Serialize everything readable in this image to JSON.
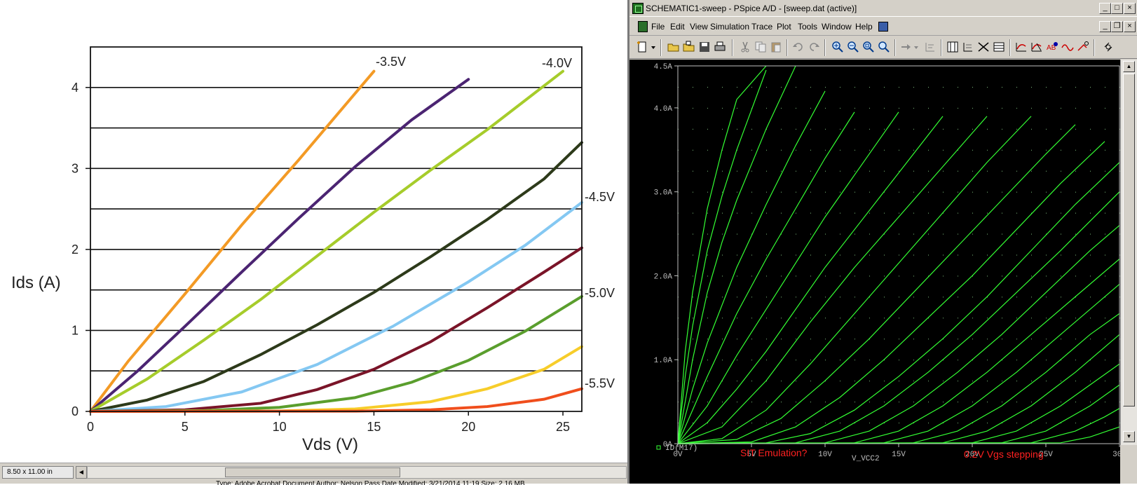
{
  "left_chart": {
    "y_axis_label": "Ids (A)",
    "x_axis_label": "Vds (V)",
    "x_ticks": [
      "0",
      "5",
      "10",
      "15",
      "20",
      "25"
    ],
    "y_ticks": [
      "0",
      "1",
      "2",
      "3",
      "4"
    ],
    "curve_labels": [
      "-3.5V",
      "-4.0V",
      "-4.5V",
      "-5.0V",
      "-5.5V"
    ]
  },
  "left_status": {
    "page_size": "8.50 x 11.00 in",
    "file_info": "Type: Adobe Acrobat Document Author: Nelson Pass Date Modified: 3/21/2014 11:19 Size: 2.16 MB"
  },
  "pspice": {
    "title": "SCHEMATIC1-sweep - PSpice A/D  - [sweep.dat (active)]",
    "menu": [
      "File",
      "Edit",
      "View",
      "Simulation",
      "Trace",
      "Plot",
      "Tools",
      "Window",
      "Help"
    ],
    "x_ticks": [
      "0V",
      "5V",
      "10V",
      "15V",
      "20V",
      "25V",
      "30V"
    ],
    "y_ticks": [
      "0A",
      "1.0A",
      "2.0A",
      "3.0A",
      "4.0A",
      "4.5A"
    ],
    "legend_trace": "ID(M17)",
    "x_var": "V_VCC2",
    "note1": "SIT Emulation?",
    "note2": "0.2V Vgs stepping",
    "colors": {
      "trace": "#33ff33",
      "grid": "#7fbf7f",
      "note": "#ff2020",
      "axis_text": "#bfbfbf"
    }
  },
  "chart_data": [
    {
      "type": "line",
      "title": "",
      "xlabel": "Vds (V)",
      "ylabel": "Ids (A)",
      "xlim": [
        0,
        26
      ],
      "ylim": [
        0,
        4.5
      ],
      "grid": "horizontal",
      "series": [
        {
          "name": "-3.5V",
          "color": "#f39a25",
          "x": [
            0,
            2,
            5,
            8,
            11,
            13,
            15
          ],
          "values": [
            0,
            0.62,
            1.45,
            2.3,
            3.1,
            3.65,
            4.2
          ]
        },
        {
          "name": "",
          "color": "#4b2472",
          "x": [
            0,
            2.5,
            5,
            8,
            11,
            14,
            17,
            20
          ],
          "values": [
            0,
            0.5,
            1.05,
            1.72,
            2.38,
            3.02,
            3.6,
            4.1
          ]
        },
        {
          "name": "-4.0V",
          "color": "#a6cc2b",
          "x": [
            0,
            3,
            6,
            9,
            12,
            15,
            18,
            21,
            25
          ],
          "values": [
            0,
            0.4,
            0.88,
            1.38,
            1.92,
            2.46,
            2.98,
            3.48,
            4.2
          ]
        },
        {
          "name": "",
          "color": "#2d3a1a",
          "x": [
            0,
            3,
            6,
            9,
            12,
            15,
            18,
            21,
            24,
            26
          ],
          "values": [
            0,
            0.14,
            0.37,
            0.7,
            1.07,
            1.47,
            1.91,
            2.37,
            2.87,
            3.32
          ]
        },
        {
          "name": "-4.5V",
          "color": "#84c8f2",
          "x": [
            0,
            4,
            8,
            12,
            16,
            20,
            23,
            26
          ],
          "values": [
            0,
            0.06,
            0.24,
            0.58,
            1.05,
            1.6,
            2.05,
            2.58
          ]
        },
        {
          "name": "",
          "color": "#7a1428",
          "x": [
            0,
            5,
            9,
            12,
            15,
            18,
            21,
            24,
            26
          ],
          "values": [
            0,
            0.02,
            0.1,
            0.27,
            0.52,
            0.86,
            1.28,
            1.72,
            2.02
          ]
        },
        {
          "name": "-5.0V",
          "color": "#5a9e2d",
          "x": [
            0,
            6,
            10,
            14,
            17,
            20,
            23,
            26
          ],
          "values": [
            0,
            0.01,
            0.05,
            0.17,
            0.36,
            0.63,
            0.99,
            1.42
          ]
        },
        {
          "name": "",
          "color": "#f7cd2a",
          "x": [
            0,
            10,
            14,
            18,
            21,
            24,
            26
          ],
          "values": [
            0,
            0.005,
            0.03,
            0.12,
            0.28,
            0.52,
            0.8
          ]
        },
        {
          "name": "-5.5V",
          "color": "#f04e1c",
          "x": [
            0,
            14,
            18,
            21,
            24,
            26
          ],
          "values": [
            0,
            0.003,
            0.02,
            0.06,
            0.15,
            0.28
          ]
        }
      ]
    },
    {
      "type": "line",
      "title": "",
      "xlabel": "V_VCC2",
      "ylabel": "",
      "xlim": [
        0,
        30
      ],
      "ylim": [
        0,
        4.5
      ],
      "grid": "dotted",
      "series": [
        {
          "name": "ID(M17)",
          "x": [
            0,
            0.5,
            1,
            2,
            3,
            4,
            6
          ],
          "values": [
            0,
            1.1,
            1.8,
            2.8,
            3.5,
            4.1,
            4.5
          ]
        },
        {
          "name": "ID(M17)",
          "x": [
            0,
            0.5,
            1,
            2,
            3,
            4,
            6
          ],
          "values": [
            0,
            0.8,
            1.4,
            2.3,
            2.95,
            3.5,
            4.45
          ]
        },
        {
          "name": "ID(M17)",
          "x": [
            0,
            1,
            2,
            3,
            4,
            6,
            8
          ],
          "values": [
            0,
            1.0,
            1.8,
            2.4,
            2.9,
            3.75,
            4.5
          ]
        },
        {
          "name": "ID(M17)",
          "x": [
            0,
            1,
            2,
            4,
            6,
            8,
            10
          ],
          "values": [
            0,
            0.65,
            1.2,
            2.1,
            2.85,
            3.55,
            4.2
          ]
        },
        {
          "name": "ID(M17)",
          "x": [
            0,
            1,
            2,
            4,
            6,
            8,
            10,
            12
          ],
          "values": [
            0,
            0.4,
            0.8,
            1.55,
            2.2,
            2.8,
            3.4,
            3.95
          ]
        },
        {
          "name": "ID(M17)",
          "x": [
            0,
            2,
            4,
            6,
            8,
            10,
            12,
            14,
            15
          ],
          "values": [
            0,
            0.45,
            1.05,
            1.6,
            2.15,
            2.7,
            3.2,
            3.7,
            3.95
          ]
        },
        {
          "name": "ID(M17)",
          "x": [
            0,
            2,
            4,
            6,
            8,
            10,
            12,
            14,
            16,
            18
          ],
          "values": [
            0,
            0.25,
            0.65,
            1.1,
            1.6,
            2.1,
            2.55,
            3.0,
            3.45,
            3.9
          ]
        },
        {
          "name": "ID(M17)",
          "x": [
            0,
            3,
            6,
            9,
            12,
            15,
            18,
            21
          ],
          "values": [
            0,
            0.2,
            0.75,
            1.45,
            2.1,
            2.7,
            3.3,
            3.9
          ]
        },
        {
          "name": "ID(M17)",
          "x": [
            0,
            3,
            6,
            9,
            12,
            15,
            18,
            21,
            24
          ],
          "values": [
            0,
            0.06,
            0.4,
            0.95,
            1.55,
            2.15,
            2.75,
            3.35,
            3.9
          ]
        },
        {
          "name": "ID(M17)",
          "x": [
            0,
            4,
            7,
            10,
            13,
            16,
            19,
            22,
            25,
            27
          ],
          "values": [
            0,
            0.05,
            0.3,
            0.75,
            1.25,
            1.8,
            2.35,
            2.9,
            3.45,
            3.8
          ]
        },
        {
          "name": "ID(M17)",
          "x": [
            0,
            5,
            8,
            11,
            14,
            17,
            20,
            23,
            26,
            29
          ],
          "values": [
            0,
            0.02,
            0.2,
            0.55,
            1.0,
            1.5,
            2.0,
            2.55,
            3.1,
            3.6
          ]
        },
        {
          "name": "ID(M17)",
          "x": [
            0,
            6,
            9,
            12,
            15,
            18,
            21,
            24,
            27,
            30
          ],
          "values": [
            0,
            0.01,
            0.12,
            0.4,
            0.8,
            1.25,
            1.75,
            2.3,
            2.85,
            3.35
          ]
        },
        {
          "name": "ID(M17)",
          "x": [
            0,
            8,
            11,
            14,
            17,
            20,
            23,
            26,
            30
          ],
          "values": [
            0,
            0.01,
            0.15,
            0.45,
            0.85,
            1.3,
            1.8,
            2.3,
            3.0
          ]
        },
        {
          "name": "ID(M17)",
          "x": [
            0,
            10,
            13,
            16,
            19,
            22,
            25,
            28,
            30
          ],
          "values": [
            0,
            0.01,
            0.15,
            0.45,
            0.85,
            1.3,
            1.8,
            2.3,
            2.6
          ]
        },
        {
          "name": "ID(M17)",
          "x": [
            0,
            12,
            15,
            18,
            21,
            24,
            27,
            30
          ],
          "values": [
            0,
            0.01,
            0.15,
            0.45,
            0.85,
            1.3,
            1.75,
            2.2
          ]
        },
        {
          "name": "ID(M17)",
          "x": [
            0,
            14,
            17,
            20,
            23,
            26,
            30
          ],
          "values": [
            0,
            0.01,
            0.15,
            0.45,
            0.85,
            1.3,
            1.9
          ]
        },
        {
          "name": "ID(M17)",
          "x": [
            0,
            16,
            19,
            22,
            25,
            28,
            30
          ],
          "values": [
            0,
            0.01,
            0.15,
            0.45,
            0.85,
            1.3,
            1.55
          ]
        },
        {
          "name": "ID(M17)",
          "x": [
            0,
            18,
            21,
            24,
            27,
            30
          ],
          "values": [
            0,
            0.01,
            0.15,
            0.45,
            0.85,
            1.3
          ]
        },
        {
          "name": "ID(M17)",
          "x": [
            0,
            20,
            23,
            26,
            28,
            30
          ],
          "values": [
            0,
            0.01,
            0.15,
            0.45,
            0.7,
            0.95
          ]
        },
        {
          "name": "ID(M17)",
          "x": [
            0,
            22,
            25,
            28,
            30
          ],
          "values": [
            0,
            0.01,
            0.15,
            0.45,
            0.7
          ]
        },
        {
          "name": "ID(M17)",
          "x": [
            0,
            24,
            27,
            29,
            30
          ],
          "values": [
            0,
            0.01,
            0.15,
            0.32,
            0.42
          ]
        },
        {
          "name": "ID(M17)",
          "x": [
            0,
            26,
            28,
            30
          ],
          "values": [
            0,
            0.01,
            0.08,
            0.2
          ]
        }
      ]
    }
  ]
}
